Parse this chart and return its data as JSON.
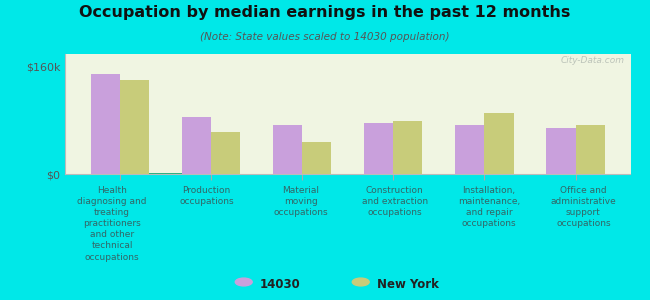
{
  "title": "Occupation by median earnings in the past 12 months",
  "subtitle": "(Note: State values scaled to 14030 population)",
  "background_color": "#00e8e8",
  "plot_bg_top": "#e8f0d8",
  "plot_bg_bottom": "#f8faf0",
  "categories": [
    "Health\ndiagnosing and\ntreating\npractitioners\nand other\ntechnical\noccupations",
    "Production\noccupations",
    "Material\nmoving\noccupations",
    "Construction\nand extraction\noccupations",
    "Installation,\nmaintenance,\nand repair\noccupations",
    "Office and\nadministrative\nsupport\noccupations"
  ],
  "values_14030": [
    148000,
    85000,
    72000,
    75000,
    72000,
    68000
  ],
  "values_ny": [
    140000,
    63000,
    48000,
    78000,
    90000,
    72000
  ],
  "color_14030": "#c9a0dc",
  "color_ny": "#c8cc7a",
  "ytick_labels": [
    "$0",
    "$160k"
  ],
  "ytick_values": [
    0,
    160000
  ],
  "ylim": [
    0,
    178000
  ],
  "legend_14030": "14030",
  "legend_ny": "New York",
  "watermark": "City-Data.com",
  "bar_width": 0.32
}
